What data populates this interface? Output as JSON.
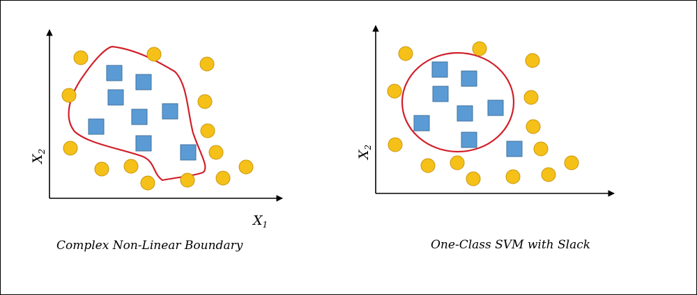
{
  "colors": {
    "circle_fill": "#f5c018",
    "circle_stroke": "#c8960c",
    "square_fill": "#5b9bd5",
    "square_stroke": "#41719c",
    "boundary": "#d0202a",
    "axis": "#000000"
  },
  "left_panel": {
    "caption": "Complex Non-Linear Boundary",
    "y_label": "X",
    "y_label_sub": "2",
    "x_label": "X",
    "x_label_sub": "1"
  },
  "right_panel": {
    "caption": "One-Class SVM with Slack",
    "y_label": "X",
    "y_label_sub": "2"
  }
}
